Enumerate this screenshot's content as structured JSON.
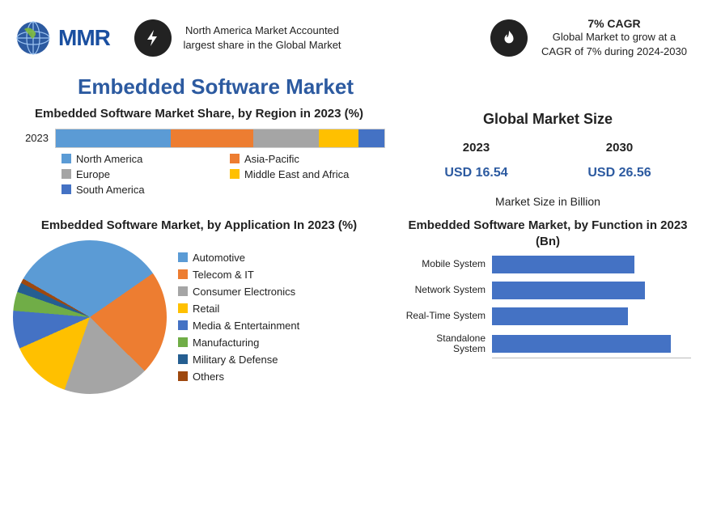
{
  "header": {
    "logo_text": "MMR",
    "left_text": "North America Market Accounted largest share in the Global Market",
    "cagr_title": "7% CAGR",
    "cagr_text": "Global Market to grow at a CAGR of 7% during 2024-2030",
    "bolt_bg": "#222222",
    "flame_bg": "#222222",
    "icon_fg": "#ffffff",
    "globe_color": "#2c5aa0",
    "logo_text_color": "#1a4fa0"
  },
  "title": "Embedded Software Market",
  "title_color": "#2c5aa0",
  "region": {
    "title": "Embedded Software Market Share, by Region in 2023 (%)",
    "row_label": "2023",
    "segments": [
      {
        "name": "North America",
        "value": 35,
        "color": "#5b9bd5"
      },
      {
        "name": "Asia-Pacific",
        "value": 25,
        "color": "#ed7d31"
      },
      {
        "name": "Europe",
        "value": 20,
        "color": "#a5a5a5"
      },
      {
        "name": "Middle East and Africa",
        "value": 12,
        "color": "#ffc000"
      },
      {
        "name": "South America",
        "value": 8,
        "color": "#4472c4"
      }
    ]
  },
  "market_size": {
    "title": "Global Market Size",
    "unit": "Market Size in Billion",
    "years": [
      {
        "year": "2023",
        "value": "USD 16.54",
        "color": "#2c5aa0"
      },
      {
        "year": "2030",
        "value": "USD 26.56",
        "color": "#2c5aa0"
      }
    ]
  },
  "application": {
    "title": "Embedded Software Market, by Application In 2023 (%)",
    "slices": [
      {
        "name": "Automotive",
        "value": 32,
        "color": "#5b9bd5"
      },
      {
        "name": "Telecom & IT",
        "value": 22,
        "color": "#ed7d31"
      },
      {
        "name": "Consumer Electronics",
        "value": 18,
        "color": "#a5a5a5"
      },
      {
        "name": "Retail",
        "value": 13,
        "color": "#ffc000"
      },
      {
        "name": "Media & Entertainment",
        "value": 8,
        "color": "#4472c4"
      },
      {
        "name": "Manufacturing",
        "value": 4,
        "color": "#70ad47"
      },
      {
        "name": "Military & Defense",
        "value": 2,
        "color": "#255e91"
      },
      {
        "name": "Others",
        "value": 1,
        "color": "#9e480e"
      }
    ]
  },
  "function_chart": {
    "title": "Embedded Software Market, by Function in 2023 (Bn)",
    "xmax": 6.0,
    "bar_color": "#4472c4",
    "categories": [
      {
        "name": "Mobile System",
        "value": 4.3
      },
      {
        "name": "Network System",
        "value": 4.6
      },
      {
        "name": "Real-Time System",
        "value": 4.1
      },
      {
        "name": "Standalone System",
        "value": 5.4
      }
    ]
  }
}
